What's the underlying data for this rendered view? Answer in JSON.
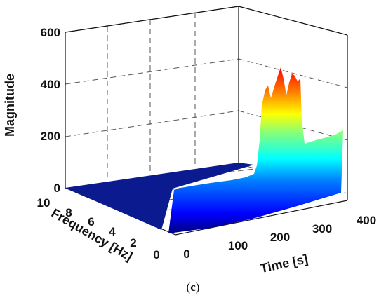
{
  "caption": {
    "open": "(",
    "letter": "c",
    "close": ")"
  },
  "chart_data": {
    "type": "surface",
    "title": "",
    "xlabel": "Time [s]",
    "ylabel": "Frequency [Hz]",
    "zlabel": "Magnitude",
    "xlim": [
      0,
      400
    ],
    "ylim": [
      0,
      10
    ],
    "zlim": [
      0,
      600
    ],
    "xticks": [
      "0",
      "100",
      "200",
      "300",
      "400"
    ],
    "yticks": [
      "0",
      "2",
      "4",
      "6",
      "8",
      "10"
    ],
    "zticks": [
      "0",
      "200",
      "400",
      "600"
    ],
    "grid": true,
    "colormap": "jet",
    "ridge": {
      "frequency": 0.5,
      "time": [
        0,
        20,
        40,
        60,
        80,
        100,
        120,
        140,
        160,
        180,
        200,
        220,
        240,
        260,
        280,
        300,
        320,
        340,
        360
      ],
      "magnitude": [
        120,
        120,
        125,
        127,
        130,
        134,
        136,
        138,
        140,
        142,
        290,
        460,
        450,
        250,
        140,
        150,
        160,
        170,
        180
      ]
    },
    "plateau_magnitude": 10
  }
}
